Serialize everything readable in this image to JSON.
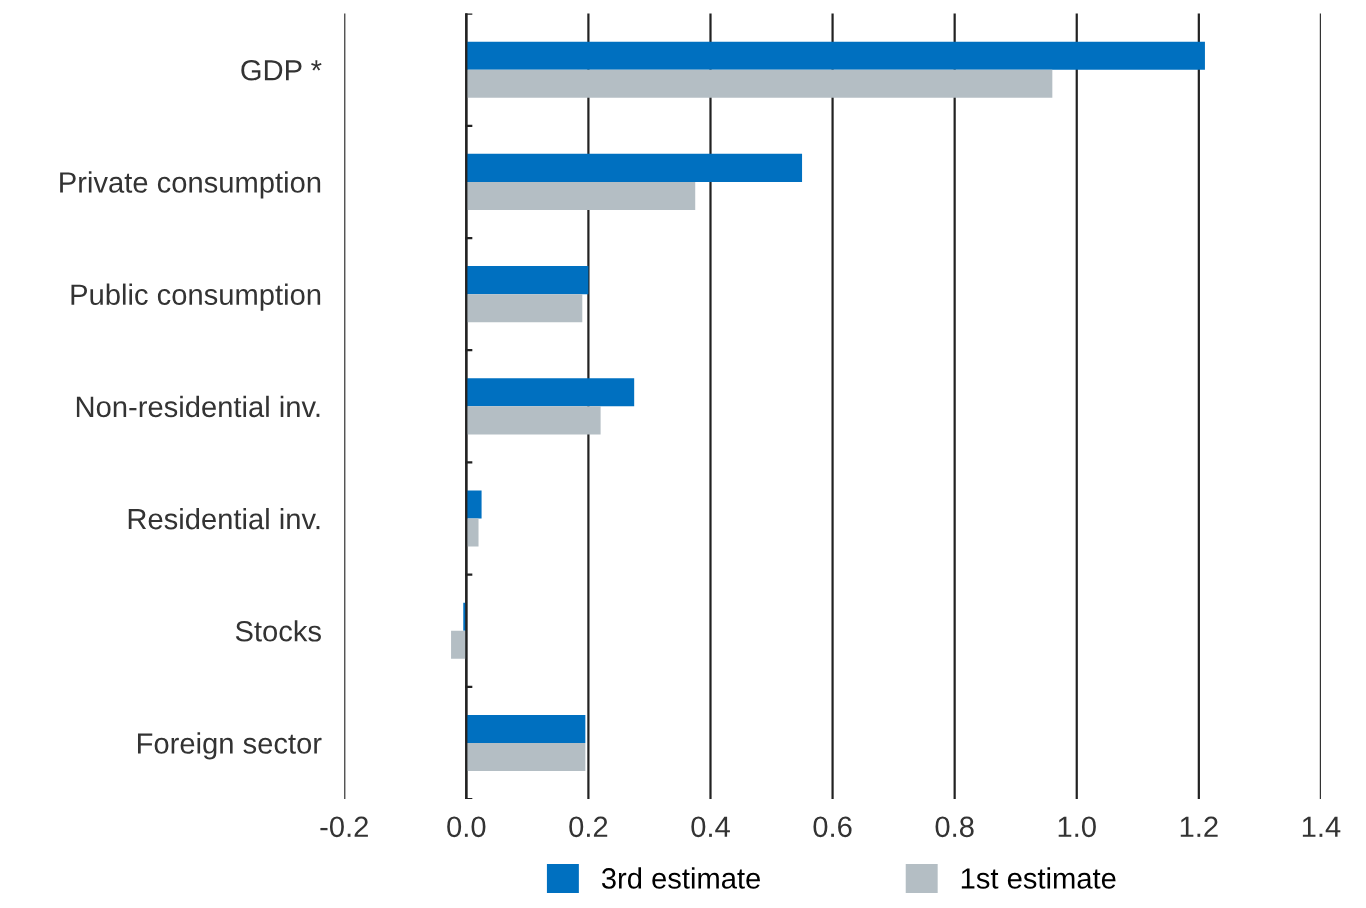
{
  "chart_data": {
    "type": "bar",
    "orientation": "horizontal",
    "categories": [
      "GDP *",
      "Private consumption",
      "Public consumption",
      "Non-residential inv.",
      "Residential inv.",
      "Stocks",
      "Foreign sector"
    ],
    "series": [
      {
        "name": "3rd estimate",
        "color": "#0070c0",
        "values": [
          1.21,
          0.55,
          0.2,
          0.275,
          0.025,
          -0.005,
          0.195
        ]
      },
      {
        "name": "1st estimate",
        "color": "#b4bec4",
        "values": [
          0.96,
          0.375,
          0.19,
          0.22,
          0.02,
          -0.025,
          0.195
        ]
      }
    ],
    "xlim": [
      -0.2,
      1.4
    ],
    "xticks": [
      {
        "value": -0.2,
        "label": "-0.2"
      },
      {
        "value": 0,
        "label": "0.0"
      },
      {
        "value": 0.2,
        "label": "0.2"
      },
      {
        "value": 0.4,
        "label": "0.4"
      },
      {
        "value": 0.6,
        "label": "0.6"
      },
      {
        "value": 0.8,
        "label": "0.8"
      },
      {
        "value": 1.0,
        "label": "1.0"
      },
      {
        "value": 1.2,
        "label": "1.2"
      },
      {
        "value": 1.4,
        "label": "1.4"
      }
    ],
    "grid": "x",
    "legend": "bottom"
  }
}
